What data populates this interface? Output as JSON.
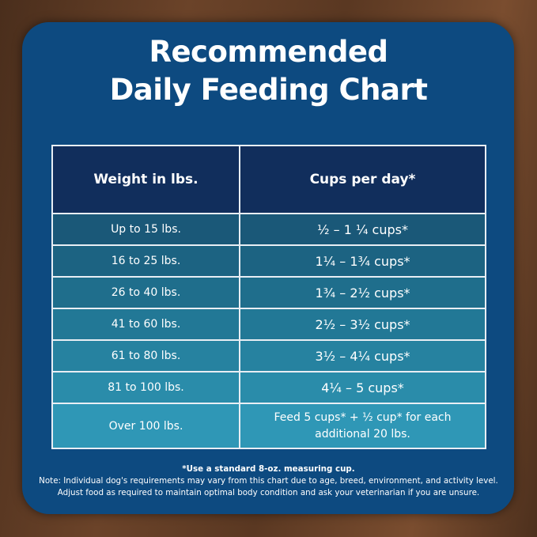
{
  "header": {
    "title_lines": [
      "Recommended",
      "Daily Feeding Chart"
    ]
  },
  "table": {
    "columns": [
      "Weight in lbs.",
      "Cups per day*"
    ],
    "rows": [
      [
        "Up to 15 lbs.",
        "½ – 1 ¼ cups*"
      ],
      [
        "16 to 25 lbs.",
        "1¼ – 1¾  cups*"
      ],
      [
        "26 to 40 lbs.",
        "1¾ – 2½ cups*"
      ],
      [
        "41 to 60 lbs.",
        "2½ – 3½ cups*"
      ],
      [
        "61 to 80 lbs.",
        "3½ – 4¼ cups*"
      ],
      [
        "81 to 100 lbs.",
        "4¼ – 5 cups*"
      ],
      [
        "Over 100 lbs.",
        "Feed 5 cups* + ½ cup* for each additional 20 lbs."
      ]
    ]
  },
  "footer": {
    "footnote": "*Use a standard 8-oz. measuring cup.",
    "note": "Note: Individual dog's requirements may vary from this chart due to age, breed, environment, and activity level. Adjust food as required to maintain optimal body condition and ask your veterinarian if you are unsure."
  }
}
